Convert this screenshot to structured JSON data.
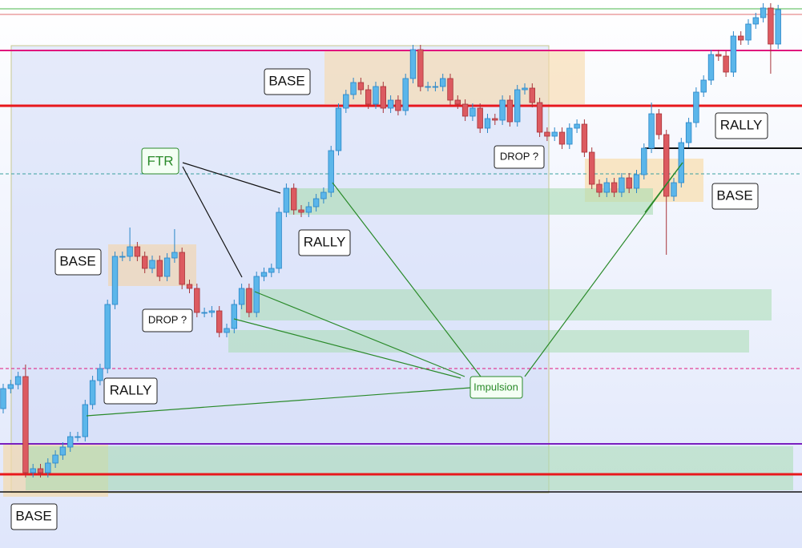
{
  "chart_data": {
    "type": "candlestick",
    "categories": [
      null,
      null,
      null,
      null,
      null,
      null,
      null,
      null,
      null,
      null,
      null,
      null,
      null,
      null,
      null,
      null,
      null,
      null,
      null,
      null,
      null,
      null,
      null,
      null,
      null,
      null,
      null,
      null,
      null,
      null,
      null,
      null,
      null,
      null,
      null,
      null,
      null,
      null,
      null,
      null,
      null,
      null,
      null,
      null,
      null,
      null,
      null,
      null,
      null,
      null,
      null,
      null,
      null,
      null,
      null,
      null,
      null,
      null,
      null,
      null,
      null,
      null,
      null,
      null,
      null,
      null,
      null,
      null,
      null,
      null,
      null,
      null,
      null,
      null,
      null,
      null,
      null,
      null,
      null,
      null,
      null,
      null,
      null,
      null,
      null,
      null,
      null,
      null,
      null,
      null,
      null,
      null,
      null,
      null,
      null,
      null,
      null,
      null,
      null,
      null,
      null,
      null,
      null,
      null,
      null
    ],
    "open": [
      174,
      199,
      204,
      214,
      94,
      99,
      94,
      106,
      116,
      126,
      139,
      139,
      179,
      209,
      224,
      304,
      364,
      364,
      376,
      364,
      349,
      359,
      339,
      362,
      369,
      329,
      324,
      294,
      294,
      296,
      269,
      274,
      304,
      324,
      294,
      339,
      344,
      349,
      419,
      449,
      422,
      419,
      426,
      436,
      444,
      496,
      549,
      566,
      581,
      572,
      554,
      576,
      549,
      559,
      546,
      586,
      622,
      576,
      576,
      576,
      586,
      559,
      554,
      539,
      549,
      524,
      536,
      534,
      559,
      532,
      572,
      574,
      556,
      519,
      514,
      519,
      504,
      524,
      529,
      494,
      454,
      444,
      456,
      444,
      462,
      449,
      466,
      499,
      542,
      516,
      439,
      456,
      506,
      531,
      569,
      584,
      616,
      614,
      594,
      639,
      634,
      654,
      662,
      674,
      629
    ],
    "high": [
      205,
      210,
      220,
      229,
      105,
      105,
      112,
      122,
      132,
      145,
      145,
      185,
      215,
      230,
      310,
      370,
      370,
      400,
      382,
      370,
      365,
      365,
      368,
      398,
      375,
      335,
      330,
      300,
      302,
      302,
      280,
      310,
      330,
      330,
      345,
      350,
      355,
      425,
      455,
      455,
      428,
      432,
      442,
      450,
      502,
      555,
      572,
      587,
      587,
      578,
      582,
      582,
      565,
      565,
      592,
      628,
      628,
      582,
      582,
      592,
      592,
      565,
      560,
      555,
      555,
      542,
      542,
      565,
      565,
      578,
      580,
      580,
      562,
      525,
      525,
      525,
      530,
      535,
      535,
      500,
      460,
      462,
      462,
      468,
      468,
      472,
      505,
      556,
      548,
      522,
      462,
      512,
      537,
      575,
      590,
      622,
      622,
      620,
      645,
      645,
      660,
      668,
      680,
      680,
      678
    ],
    "low": [
      168,
      193,
      198,
      88,
      88,
      88,
      88,
      100,
      110,
      120,
      133,
      133,
      173,
      203,
      218,
      298,
      358,
      358,
      358,
      343,
      343,
      333,
      333,
      356,
      323,
      318,
      288,
      288,
      288,
      263,
      263,
      268,
      298,
      288,
      288,
      333,
      338,
      343,
      413,
      416,
      413,
      413,
      420,
      430,
      438,
      490,
      543,
      560,
      566,
      548,
      548,
      543,
      543,
      540,
      540,
      580,
      570,
      570,
      570,
      570,
      553,
      548,
      533,
      533,
      518,
      518,
      528,
      528,
      526,
      526,
      566,
      550,
      513,
      508,
      508,
      498,
      498,
      518,
      488,
      448,
      438,
      438,
      438,
      438,
      443,
      443,
      460,
      493,
      510,
      366,
      433,
      450,
      500,
      525,
      563,
      578,
      608,
      588,
      588,
      628,
      628,
      648,
      656,
      592,
      623
    ],
    "close": [
      199,
      204,
      214,
      94,
      99,
      94,
      106,
      116,
      126,
      139,
      139,
      179,
      209,
      224,
      304,
      364,
      364,
      376,
      364,
      349,
      359,
      339,
      362,
      369,
      329,
      324,
      294,
      294,
      296,
      269,
      274,
      304,
      324,
      294,
      339,
      344,
      349,
      419,
      449,
      422,
      419,
      426,
      436,
      444,
      496,
      549,
      566,
      581,
      572,
      554,
      576,
      549,
      559,
      546,
      586,
      622,
      576,
      576,
      576,
      586,
      559,
      554,
      539,
      549,
      524,
      536,
      534,
      559,
      532,
      572,
      574,
      556,
      519,
      514,
      519,
      504,
      524,
      529,
      494,
      454,
      444,
      456,
      444,
      462,
      449,
      466,
      499,
      542,
      516,
      439,
      456,
      506,
      531,
      569,
      584,
      616,
      614,
      594,
      639,
      634,
      654,
      662,
      674,
      629,
      672
    ],
    "ylim": [
      0,
      684
    ],
    "up_color": "#5bb6ea",
    "down_color": "#dc5a60",
    "annotations": [
      "BASE",
      "FTR",
      "BASE",
      "RALLY",
      "DROP ?",
      "DROP ?",
      "RALLY",
      "BASE",
      "RALLY",
      "Impulsion",
      "BASE"
    ]
  }
}
